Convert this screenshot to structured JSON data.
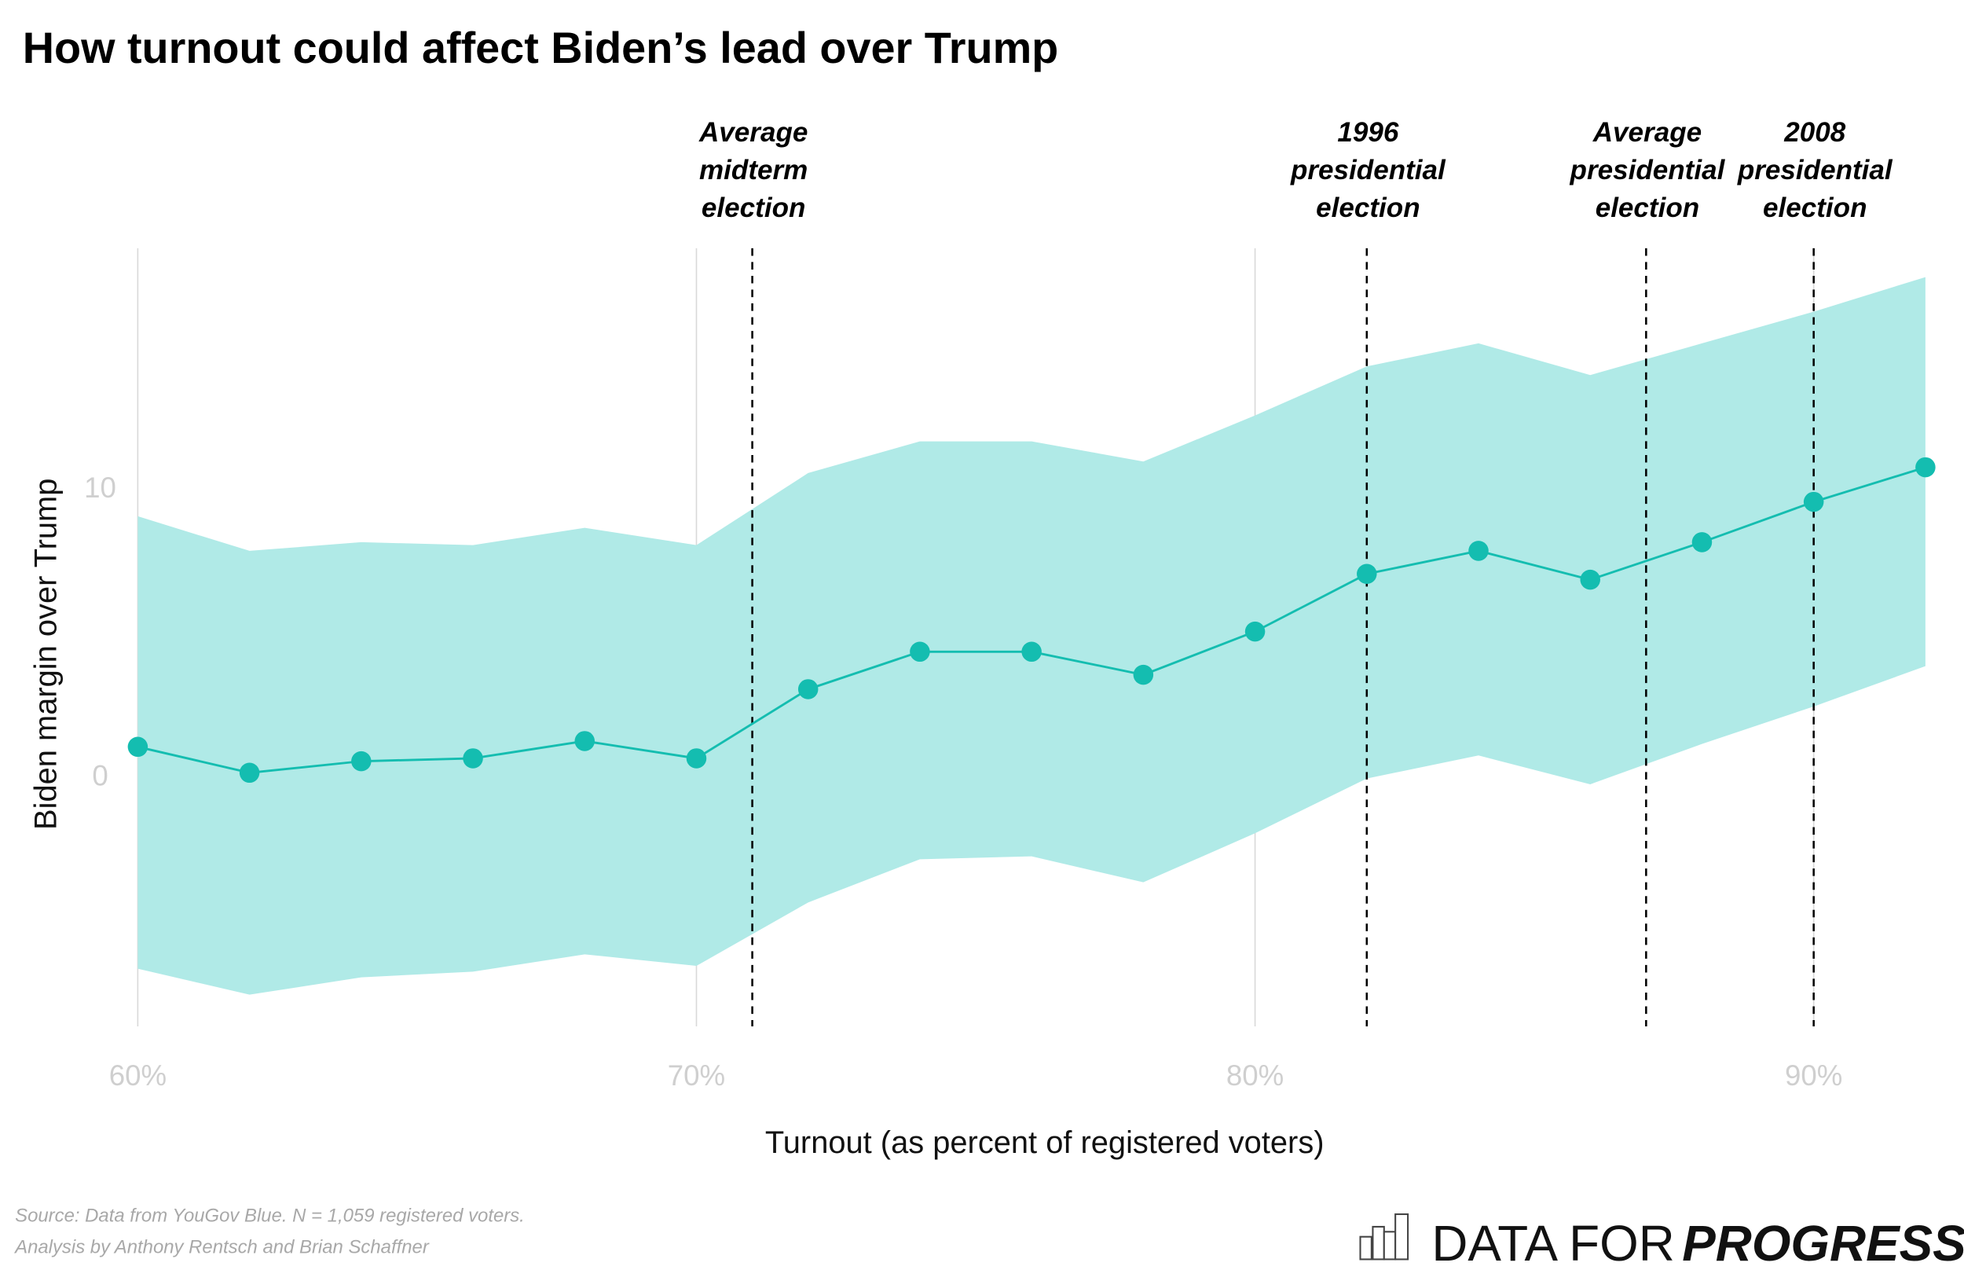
{
  "chart_data": {
    "type": "line",
    "title": "How turnout could affect Biden’s lead over Trump",
    "xlabel": "Turnout (as percent of registered voters)",
    "ylabel": "Biden margin over Trump",
    "xlim": [
      60,
      92
    ],
    "ylim": [
      -8.7,
      18.3
    ],
    "x_ticks": [
      60,
      70,
      80,
      90
    ],
    "x_tick_labels": [
      "60%",
      "70%",
      "80%",
      "90%"
    ],
    "y_ticks": [
      0,
      10
    ],
    "y_tick_labels": [
      "0",
      "10"
    ],
    "grid": "vertical lines at x ticks",
    "x": [
      60,
      62,
      64,
      66,
      68,
      70,
      72,
      74,
      76,
      78,
      80,
      82,
      84,
      86,
      88,
      90,
      92
    ],
    "series": [
      {
        "values": [
          1.0,
          0.1,
          0.5,
          0.6,
          1.2,
          0.6,
          3.0,
          4.3,
          4.3,
          3.5,
          5.0,
          7.0,
          7.8,
          6.8,
          8.1,
          9.5,
          10.7
        ],
        "lower": [
          -6.7,
          -7.6,
          -7.0,
          -6.8,
          -6.2,
          -6.6,
          -4.4,
          -2.9,
          -2.8,
          -3.7,
          -2.0,
          -0.1,
          0.7,
          -0.3,
          1.1,
          2.4,
          3.8
        ],
        "upper": [
          9.0,
          7.8,
          8.1,
          8.0,
          8.6,
          8.0,
          10.5,
          11.6,
          11.6,
          10.9,
          12.5,
          14.2,
          15.0,
          13.9,
          15.0,
          16.1,
          17.3
        ]
      }
    ],
    "colors": {
      "line": "#14bdb0",
      "band": "#b0eae7",
      "grid": "#d9d9d9"
    },
    "reference_lines": [
      {
        "x": 71,
        "label": [
          "Average",
          "midterm",
          "election"
        ]
      },
      {
        "x": 82,
        "label": [
          "1996",
          "presidential",
          "election"
        ]
      },
      {
        "x": 87,
        "label": [
          "Average",
          "presidential",
          "election"
        ]
      },
      {
        "x": 90,
        "label": [
          "2008",
          "presidential",
          "election"
        ]
      }
    ]
  },
  "source": {
    "line1": "Source: Data from YouGov Blue. N = 1,059 registered voters.",
    "line2": "Analysis by Anthony Rentsch and Brian Schaffner"
  },
  "logo": {
    "part1": "DATA FOR",
    "part2": "PROGRESS"
  }
}
